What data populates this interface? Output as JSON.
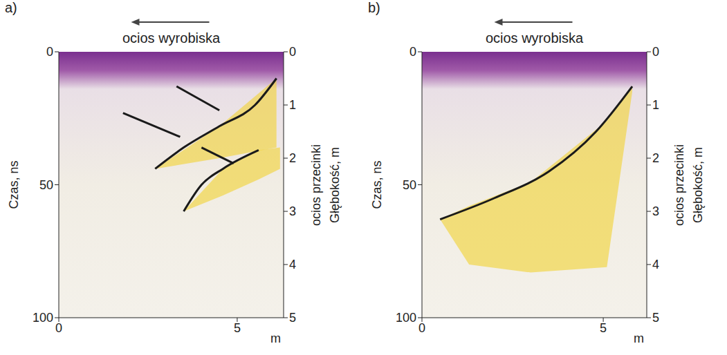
{
  "chart_data": [
    {
      "type": "line",
      "title": "a)",
      "annotations": [
        "ocios wyrobiska",
        "ocios przecinki"
      ],
      "x_label": "m",
      "y_label": "Czas, ns",
      "y2_label": "Głębokość, m",
      "xlim": [
        0,
        6.3
      ],
      "xticks": [
        0,
        5
      ],
      "ylim": [
        100,
        0
      ],
      "yticks": [
        0,
        50,
        100
      ],
      "y2lim": [
        5,
        0
      ],
      "y2ticks": [
        0,
        1,
        2,
        3,
        4,
        5
      ],
      "series": [
        {
          "type": "area",
          "color": "#f2d230",
          "x": [
            2.7,
            4.5,
            6.1
          ],
          "values": [
            [
              44,
              44
            ],
            [
              28,
              40
            ],
            [
              10,
              36
            ]
          ]
        },
        {
          "type": "area",
          "color": "#f2d230",
          "x": [
            3.5,
            4.6,
            5.6,
            6.2
          ],
          "values": [
            [
              60,
              60
            ],
            [
              44,
              54
            ],
            [
              37,
              48
            ],
            [
              36,
              44
            ]
          ]
        },
        {
          "type": "line",
          "color": "#1a1a1a",
          "x": [
            2.7,
            3.5,
            4.5,
            5.5,
            6.1
          ],
          "values": [
            44,
            36,
            28,
            20,
            10
          ]
        },
        {
          "type": "line",
          "color": "#1a1a1a",
          "x": [
            3.5,
            4.0,
            4.6,
            5.6
          ],
          "values": [
            60,
            50,
            44,
            37
          ]
        },
        {
          "type": "line",
          "color": "#1a1a1a",
          "x": [
            3.3,
            4.5
          ],
          "values": [
            13,
            22
          ]
        },
        {
          "type": "line",
          "color": "#1a1a1a",
          "x": [
            1.8,
            3.4
          ],
          "values": [
            23,
            32
          ]
        },
        {
          "type": "line",
          "color": "#1a1a1a",
          "x": [
            4.0,
            4.9
          ],
          "values": [
            36,
            42
          ]
        }
      ]
    },
    {
      "type": "line",
      "title": "b)",
      "annotations": [
        "ocios wyrobiska",
        "ocios przecinki"
      ],
      "x_label": "m",
      "y_label": "Czas, ns",
      "y2_label": "Głębokość, m",
      "xlim": [
        0,
        6.2
      ],
      "xticks": [
        0,
        5
      ],
      "ylim": [
        100,
        0
      ],
      "yticks": [
        0,
        50,
        100
      ],
      "y2lim": [
        5,
        0
      ],
      "y2ticks": [
        0,
        1,
        2,
        3,
        4,
        5
      ],
      "series": [
        {
          "type": "area",
          "color": "#f2d230",
          "x": [
            0.5,
            1.3,
            3.0,
            5.1,
            5.8
          ],
          "values": [
            [
              63,
              63
            ],
            [
              58,
              80
            ],
            [
              49,
              83
            ],
            [
              26,
              81
            ],
            [
              13,
              15
            ]
          ]
        },
        {
          "type": "line",
          "color": "#1a1a1a",
          "x": [
            0.5,
            2.0,
            3.5,
            4.8,
            5.8
          ],
          "values": [
            63,
            55,
            45,
            30,
            13
          ]
        }
      ]
    }
  ]
}
